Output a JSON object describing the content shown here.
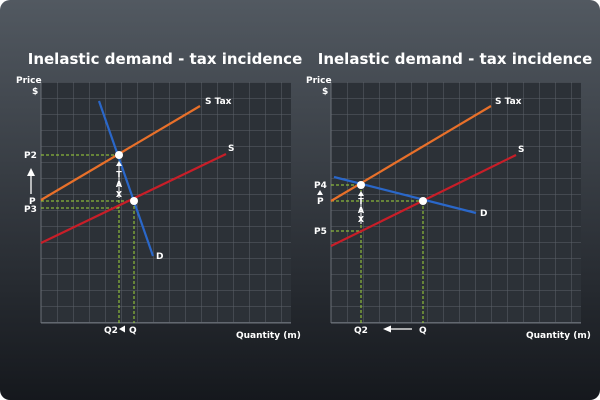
{
  "colors": {
    "background_top": "#525961",
    "background_bottom": "#15181d",
    "plot_background": "#2c3137",
    "grid": "#5b6168",
    "supply": "#c81e28",
    "supply_tax": "#e8702a",
    "demand": "#2a67c9",
    "guide": "#9fd73a",
    "point": "#ffffff",
    "text": "#ffffff"
  },
  "panels": [
    {
      "title": "Inelastic demand - tax incidence",
      "y_axis_label": [
        "Price",
        "$"
      ],
      "x_axis_label": "Quantity (m)",
      "curve_labels": {
        "supply_tax": "S Tax",
        "supply": "S",
        "demand": "D"
      },
      "price_labels": [
        "P2",
        "P",
        "P3"
      ],
      "tax_label": [
        "T",
        "A",
        "X"
      ],
      "quantity_labels": [
        "Q2",
        "Q"
      ]
    },
    {
      "title": "Inelastic demand - tax incidence",
      "y_axis_label": [
        "Price",
        "$"
      ],
      "x_axis_label": "Quantity (m)",
      "curve_labels": {
        "supply_tax": "S Tax",
        "supply": "S",
        "demand": "D"
      },
      "price_labels": [
        "P4",
        "P",
        "P5"
      ],
      "tax_label": [
        "T",
        "A",
        "X"
      ],
      "quantity_labels": [
        "Q2",
        "Q"
      ]
    }
  ]
}
